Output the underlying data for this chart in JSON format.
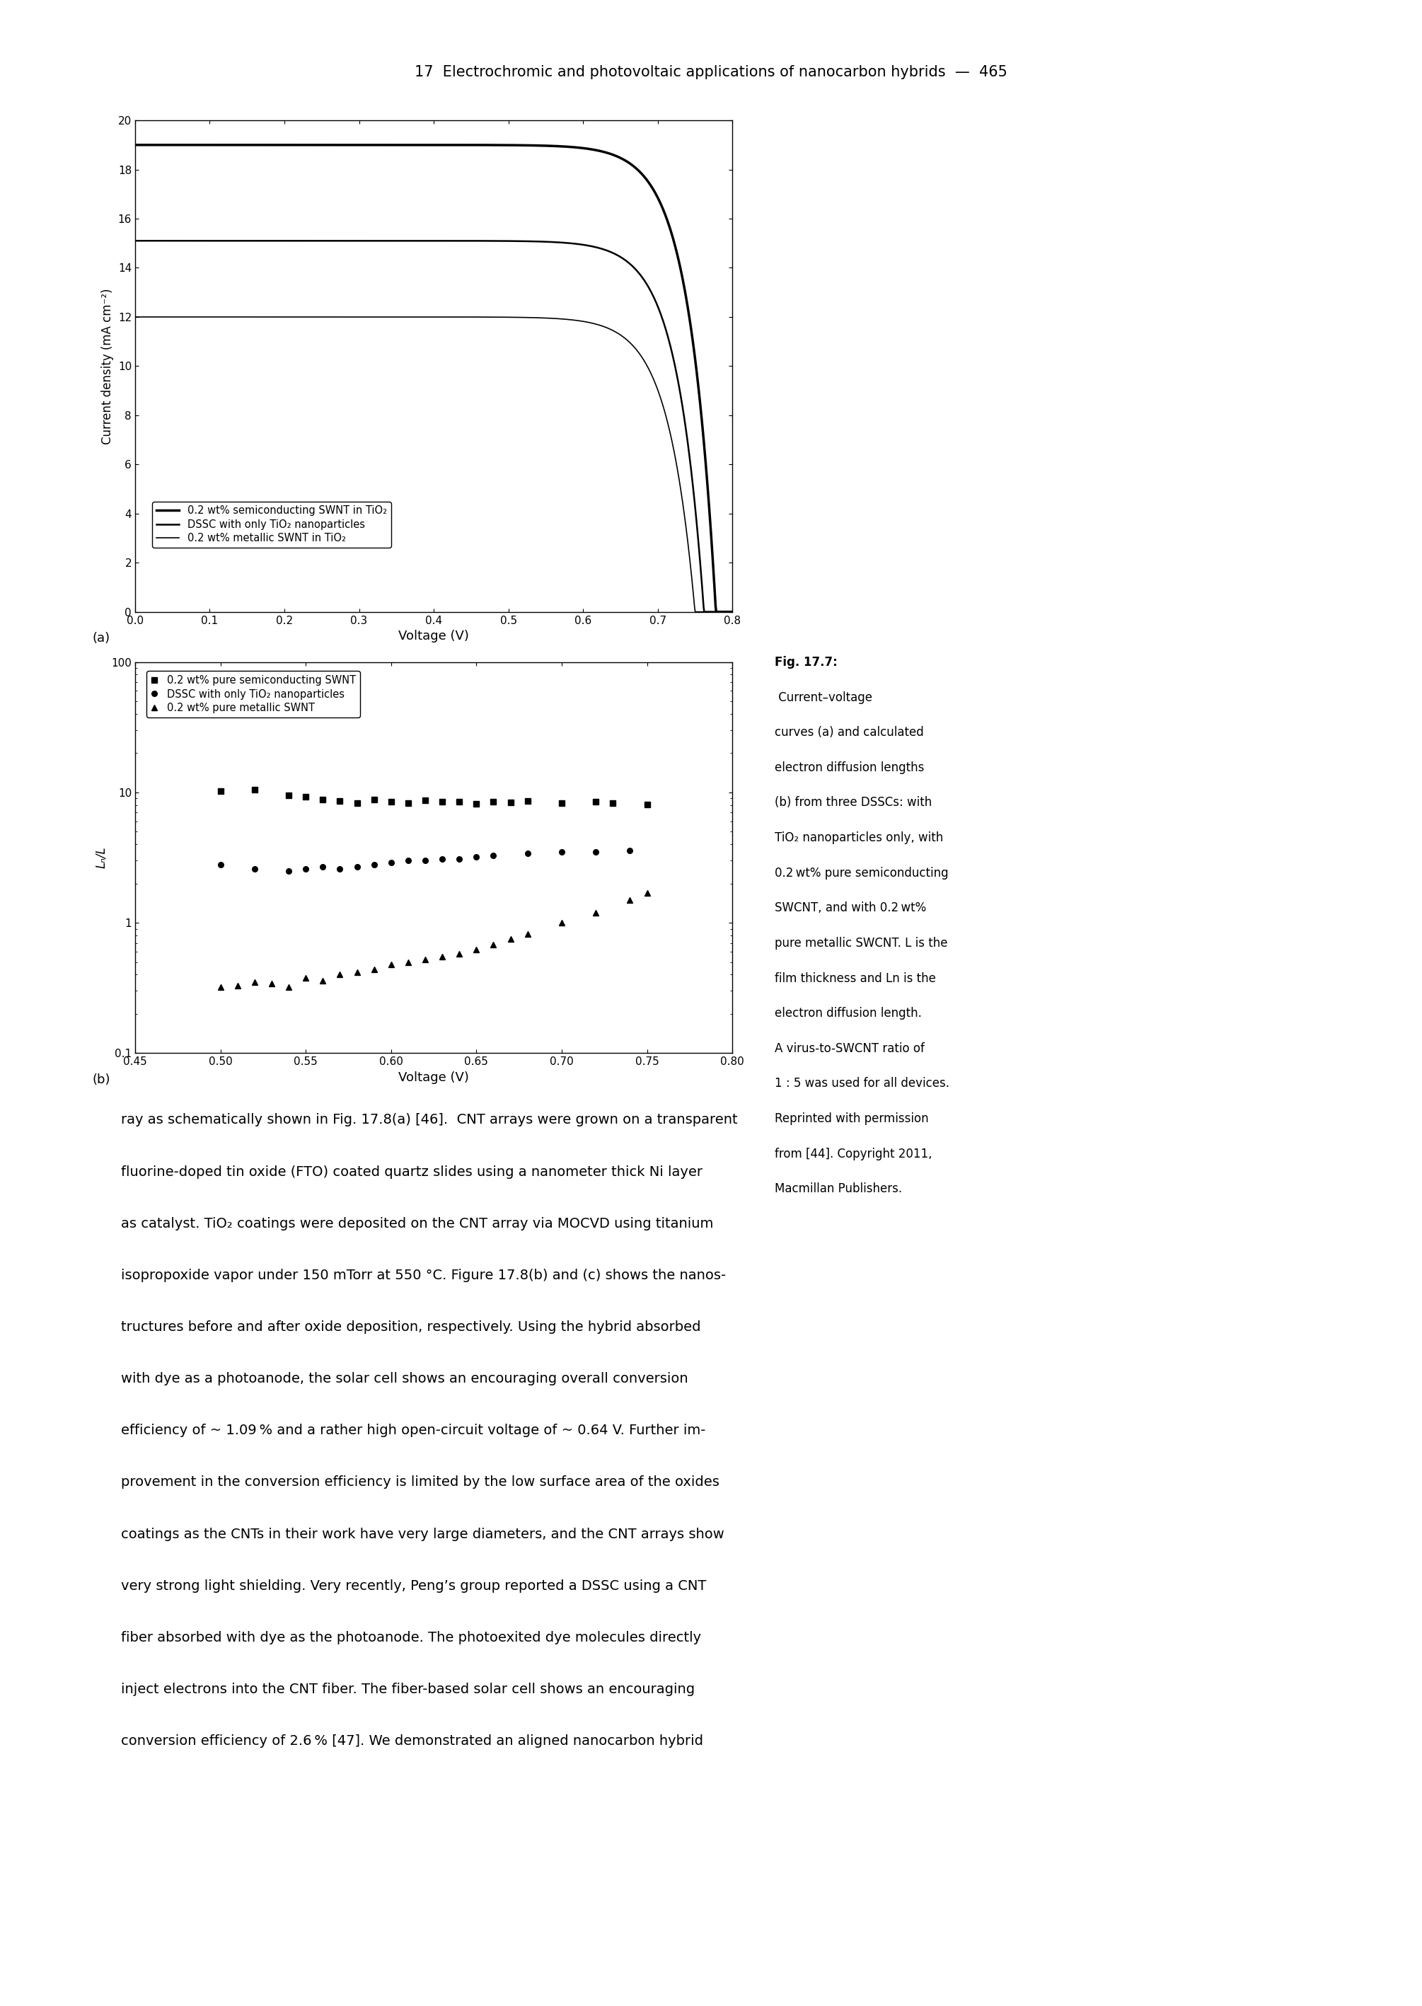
{
  "header_text": "17  Electrochromic and photovoltaic applications of nanocarbon hybrids",
  "header_dash": "—",
  "header_page": "465",
  "panel_a": {
    "xlabel": "Voltage (V)",
    "ylabel": "Current density (mA cm⁻²)",
    "xlim": [
      0.0,
      0.8
    ],
    "ylim": [
      0,
      20
    ],
    "yticks": [
      0,
      2,
      4,
      6,
      8,
      10,
      12,
      14,
      16,
      18,
      20
    ],
    "xticks": [
      0.0,
      0.1,
      0.2,
      0.3,
      0.4,
      0.5,
      0.6,
      0.7,
      0.8
    ],
    "xtick_labels": [
      "0.0",
      "0.1",
      "0.2",
      "0.3",
      "0.4",
      "0.5",
      "0.6",
      "0.7",
      "0.8"
    ],
    "legend_entries": [
      "0.2 wt% semiconducting SWNT in TiO₂",
      "DSSC with only TiO₂ nanoparticles",
      "0.2 wt% metallic SWNT in TiO₂"
    ],
    "jsc_values": [
      19.0,
      15.1,
      12.0
    ],
    "voc_values": [
      0.778,
      0.762,
      0.75
    ],
    "sharpness": [
      28,
      28,
      28
    ],
    "linewidths": [
      2.5,
      1.8,
      1.2
    ]
  },
  "panel_b": {
    "xlabel": "Voltage (V)",
    "ylabel": "Lₙ/L",
    "xlim": [
      0.45,
      0.8
    ],
    "ylim_log": [
      0.1,
      100
    ],
    "xticks": [
      0.45,
      0.5,
      0.55,
      0.6,
      0.65,
      0.7,
      0.75,
      0.8
    ],
    "xtick_labels": [
      "0.45",
      "0.50",
      "0.55",
      "0.60",
      "0.65",
      "0.70",
      "0.75",
      "0.80"
    ],
    "legend_entries": [
      "0.2 wt% pure semiconducting SWNT",
      "DSSC with only TiO₂ nanoparticles",
      "0.2 wt% pure metallic SWNT"
    ],
    "semiconducting_x": [
      0.5,
      0.52,
      0.54,
      0.55,
      0.56,
      0.57,
      0.58,
      0.59,
      0.6,
      0.61,
      0.62,
      0.63,
      0.64,
      0.65,
      0.66,
      0.67,
      0.68,
      0.7,
      0.72,
      0.73,
      0.75
    ],
    "semiconducting_y": [
      10.2,
      10.5,
      9.5,
      9.3,
      8.8,
      8.6,
      8.3,
      8.8,
      8.5,
      8.3,
      8.7,
      8.5,
      8.5,
      8.2,
      8.5,
      8.4,
      8.6,
      8.3,
      8.5,
      8.3,
      8.1
    ],
    "tio2_x": [
      0.5,
      0.52,
      0.54,
      0.55,
      0.56,
      0.57,
      0.58,
      0.59,
      0.6,
      0.61,
      0.62,
      0.63,
      0.64,
      0.65,
      0.66,
      0.68,
      0.7,
      0.72,
      0.74
    ],
    "tio2_y": [
      2.8,
      2.6,
      2.5,
      2.6,
      2.7,
      2.6,
      2.7,
      2.8,
      2.9,
      3.0,
      3.0,
      3.1,
      3.1,
      3.2,
      3.3,
      3.4,
      3.5,
      3.5,
      3.6
    ],
    "metallic_x": [
      0.5,
      0.51,
      0.52,
      0.53,
      0.54,
      0.55,
      0.56,
      0.57,
      0.58,
      0.59,
      0.6,
      0.61,
      0.62,
      0.63,
      0.64,
      0.65,
      0.66,
      0.67,
      0.68,
      0.7,
      0.72,
      0.74,
      0.75
    ],
    "metallic_y": [
      0.32,
      0.33,
      0.35,
      0.34,
      0.32,
      0.38,
      0.36,
      0.4,
      0.42,
      0.44,
      0.48,
      0.5,
      0.52,
      0.55,
      0.58,
      0.62,
      0.68,
      0.75,
      0.82,
      1.0,
      1.2,
      1.5,
      1.7
    ]
  },
  "caption_bold": "Fig. 17.7:",
  "caption_rest": " Current–voltage curves (a) and calculated electron diffusion lengths (b) from three DSSCs: with TiO₂ nanoparticles only, with 0.2 wt% pure semiconducting SWCNT, and with 0.2 wt% pure metallic SWCNT. L is the film thickness and Ln is the electron diffusion length. A virus-to-SWCNT ratio of 1 : 5 was used for all devices. Reprinted with permission from [44]. Copyright 2011, Macmillan Publishers.",
  "body_text": "ray as schematically shown in Fig. 17.8(a) [46].  CNT arrays were grown on a transparent\nfluorine-doped tin oxide (FTO) coated quartz slides using a nanometer thick Ni layer\nas catalyst. TiO₂ coatings were deposited on the CNT array via MOCVD using titanium\nisopropoxide vapor under 150 mTorr at 550 °C. Figure 17.8(b) and (c) shows the nanos-\ntructures before and after oxide deposition, respectively. Using the hybrid absorbed\nwith dye as a photoanode, the solar cell shows an encouraging overall conversion\nefficiency of ~ 1.09 % and a rather high open-circuit voltage of ~ 0.64 V. Further im-\nprovement in the conversion efficiency is limited by the low surface area of the oxides\ncoatings as the CNTs in their work have very large diameters, and the CNT arrays show\nvery strong light shielding. Very recently, Peng’s group reported a DSSC using a CNT\nfiber absorbed with dye as the photoanode. The photoexited dye molecules directly\ninject electrons into the CNT fiber. The fiber-based solar cell shows an encouraging\nconversion efficiency of 2.6 % [47]. We demonstrated an aligned nanocarbon hybrid"
}
